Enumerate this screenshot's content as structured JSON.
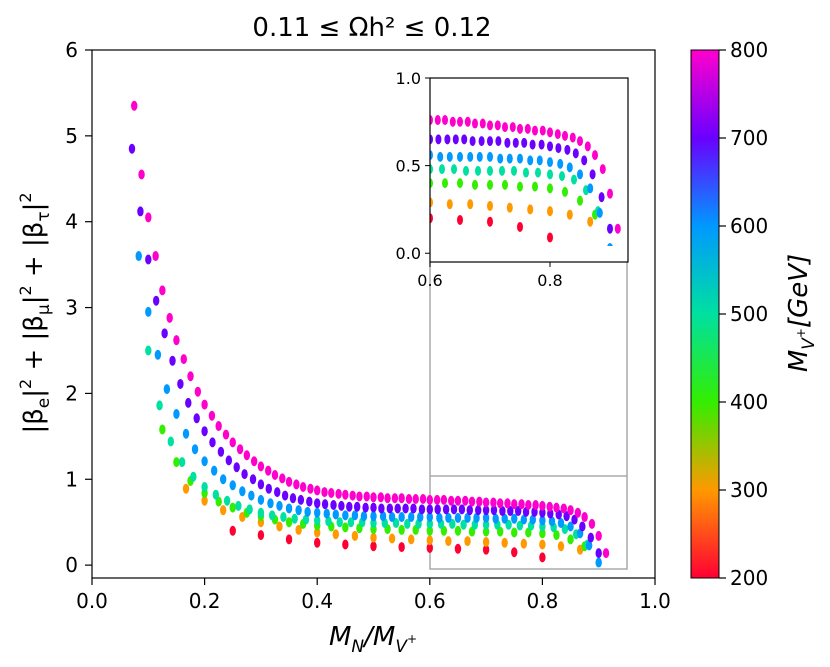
{
  "chart_data": [
    {
      "type": "scatter",
      "title": "0.11 ≤ Ωh² ≤ 0.12",
      "xlabel": "M_N/M_V+",
      "ylabel": "|β_e|² + |β_μ|² + |β_τ|²",
      "xlim": [
        0.0,
        1.0
      ],
      "ylim": [
        -0.15,
        6.0
      ],
      "xticks": [
        "0.0",
        "0.2",
        "0.4",
        "0.6",
        "0.8",
        "1.0"
      ],
      "yticks": [
        "0",
        "1",
        "2",
        "3",
        "4",
        "5",
        "6"
      ],
      "grid": false,
      "color_by": "M_V+",
      "series": [
        {
          "mv": 200,
          "color": "#ff0033",
          "x": [
            0.25,
            0.3,
            0.35,
            0.4,
            0.45,
            0.5,
            0.55,
            0.6,
            0.65,
            0.7,
            0.75,
            0.8
          ],
          "y": [
            0.4,
            0.35,
            0.3,
            0.26,
            0.24,
            0.22,
            0.21,
            0.2,
            0.19,
            0.18,
            0.15,
            0.09
          ]
        },
        {
          "mv": 300,
          "color": "#ff9900",
          "x": [
            0.167,
            0.2,
            0.233,
            0.267,
            0.3,
            0.333,
            0.367,
            0.4,
            0.433,
            0.467,
            0.5,
            0.533,
            0.567,
            0.6,
            0.633,
            0.667,
            0.7,
            0.733,
            0.767,
            0.8,
            0.833,
            0.867
          ],
          "y": [
            0.89,
            0.75,
            0.64,
            0.56,
            0.5,
            0.45,
            0.41,
            0.38,
            0.36,
            0.34,
            0.32,
            0.31,
            0.3,
            0.29,
            0.28,
            0.28,
            0.27,
            0.26,
            0.25,
            0.24,
            0.22,
            0.18
          ]
        },
        {
          "mv": 400,
          "color": "#33ee00",
          "x": [
            0.125,
            0.15,
            0.175,
            0.2,
            0.225,
            0.25,
            0.275,
            0.3,
            0.325,
            0.35,
            0.375,
            0.4,
            0.425,
            0.45,
            0.475,
            0.5,
            0.525,
            0.55,
            0.575,
            0.6,
            0.625,
            0.65,
            0.675,
            0.7,
            0.725,
            0.75,
            0.775,
            0.8,
            0.825,
            0.85,
            0.875
          ],
          "y": [
            1.58,
            1.2,
            0.98,
            0.84,
            0.74,
            0.67,
            0.61,
            0.57,
            0.53,
            0.5,
            0.48,
            0.46,
            0.45,
            0.44,
            0.43,
            0.42,
            0.42,
            0.41,
            0.41,
            0.4,
            0.4,
            0.4,
            0.39,
            0.39,
            0.39,
            0.38,
            0.38,
            0.37,
            0.35,
            0.3,
            0.22
          ]
        },
        {
          "mv": 500,
          "color": "#00e0a0",
          "x": [
            0.1,
            0.12,
            0.14,
            0.16,
            0.18,
            0.2,
            0.22,
            0.24,
            0.26,
            0.28,
            0.3,
            0.32,
            0.34,
            0.36,
            0.38,
            0.4,
            0.42,
            0.44,
            0.46,
            0.48,
            0.5,
            0.52,
            0.54,
            0.56,
            0.58,
            0.6,
            0.62,
            0.64,
            0.66,
            0.68,
            0.7,
            0.72,
            0.74,
            0.76,
            0.78,
            0.8,
            0.82,
            0.84,
            0.86,
            0.88
          ],
          "y": [
            2.5,
            1.86,
            1.44,
            1.2,
            1.03,
            0.91,
            0.82,
            0.75,
            0.69,
            0.65,
            0.61,
            0.58,
            0.56,
            0.54,
            0.53,
            0.52,
            0.51,
            0.5,
            0.5,
            0.5,
            0.49,
            0.49,
            0.49,
            0.48,
            0.48,
            0.48,
            0.48,
            0.48,
            0.47,
            0.47,
            0.47,
            0.47,
            0.47,
            0.46,
            0.46,
            0.45,
            0.44,
            0.42,
            0.36,
            0.24
          ]
        },
        {
          "mv": 600,
          "color": "#0099ff",
          "x": [
            0.083,
            0.1,
            0.117,
            0.133,
            0.15,
            0.167,
            0.183,
            0.2,
            0.217,
            0.233,
            0.25,
            0.267,
            0.283,
            0.3,
            0.317,
            0.333,
            0.35,
            0.367,
            0.383,
            0.4,
            0.417,
            0.433,
            0.45,
            0.467,
            0.483,
            0.5,
            0.517,
            0.533,
            0.55,
            0.567,
            0.583,
            0.6,
            0.617,
            0.633,
            0.65,
            0.667,
            0.683,
            0.7,
            0.717,
            0.733,
            0.75,
            0.767,
            0.783,
            0.8,
            0.817,
            0.833,
            0.85,
            0.867,
            0.883,
            0.9
          ],
          "y": [
            3.6,
            2.95,
            2.45,
            2.05,
            1.76,
            1.53,
            1.35,
            1.21,
            1.1,
            1.0,
            0.93,
            0.86,
            0.81,
            0.76,
            0.72,
            0.69,
            0.66,
            0.64,
            0.62,
            0.61,
            0.6,
            0.59,
            0.58,
            0.58,
            0.57,
            0.57,
            0.57,
            0.56,
            0.56,
            0.56,
            0.56,
            0.56,
            0.55,
            0.55,
            0.55,
            0.55,
            0.55,
            0.55,
            0.54,
            0.54,
            0.54,
            0.53,
            0.53,
            0.52,
            0.51,
            0.49,
            0.45,
            0.37,
            0.23,
            0.03
          ]
        },
        {
          "mv": 700,
          "color": "#6a00ff",
          "x": [
            0.071,
            0.086,
            0.1,
            0.114,
            0.129,
            0.143,
            0.157,
            0.171,
            0.186,
            0.2,
            0.214,
            0.229,
            0.243,
            0.257,
            0.271,
            0.286,
            0.3,
            0.314,
            0.329,
            0.343,
            0.357,
            0.371,
            0.386,
            0.4,
            0.414,
            0.429,
            0.443,
            0.457,
            0.471,
            0.486,
            0.5,
            0.514,
            0.529,
            0.543,
            0.557,
            0.571,
            0.586,
            0.6,
            0.614,
            0.629,
            0.643,
            0.657,
            0.671,
            0.686,
            0.7,
            0.714,
            0.729,
            0.743,
            0.757,
            0.771,
            0.786,
            0.8,
            0.814,
            0.829,
            0.843,
            0.857,
            0.871,
            0.886,
            0.9
          ],
          "y": [
            4.85,
            4.12,
            3.56,
            3.08,
            2.7,
            2.38,
            2.11,
            1.89,
            1.71,
            1.56,
            1.43,
            1.32,
            1.22,
            1.14,
            1.06,
            1.0,
            0.94,
            0.89,
            0.85,
            0.81,
            0.78,
            0.76,
            0.74,
            0.72,
            0.71,
            0.7,
            0.69,
            0.68,
            0.68,
            0.67,
            0.67,
            0.66,
            0.66,
            0.66,
            0.66,
            0.66,
            0.65,
            0.65,
            0.65,
            0.65,
            0.65,
            0.65,
            0.64,
            0.64,
            0.64,
            0.64,
            0.63,
            0.63,
            0.63,
            0.62,
            0.62,
            0.61,
            0.6,
            0.59,
            0.57,
            0.53,
            0.45,
            0.32,
            0.14
          ]
        },
        {
          "mv": 800,
          "color": "#ff00cc",
          "x": [
            0.075,
            0.088,
            0.1,
            0.113,
            0.125,
            0.138,
            0.15,
            0.163,
            0.175,
            0.188,
            0.2,
            0.213,
            0.225,
            0.238,
            0.25,
            0.263,
            0.275,
            0.288,
            0.3,
            0.313,
            0.325,
            0.338,
            0.35,
            0.363,
            0.375,
            0.388,
            0.4,
            0.413,
            0.425,
            0.438,
            0.45,
            0.463,
            0.475,
            0.488,
            0.5,
            0.513,
            0.525,
            0.538,
            0.55,
            0.563,
            0.575,
            0.588,
            0.6,
            0.613,
            0.625,
            0.638,
            0.65,
            0.663,
            0.675,
            0.688,
            0.7,
            0.713,
            0.725,
            0.738,
            0.75,
            0.763,
            0.775,
            0.788,
            0.8,
            0.813,
            0.825,
            0.838,
            0.85,
            0.863,
            0.875,
            0.888,
            0.9,
            0.913
          ],
          "y": [
            5.35,
            4.55,
            4.05,
            3.6,
            3.2,
            2.88,
            2.62,
            2.4,
            2.2,
            2.02,
            1.87,
            1.74,
            1.62,
            1.52,
            1.43,
            1.35,
            1.28,
            1.21,
            1.15,
            1.1,
            1.05,
            1.01,
            0.97,
            0.94,
            0.91,
            0.89,
            0.87,
            0.85,
            0.84,
            0.83,
            0.82,
            0.81,
            0.8,
            0.8,
            0.79,
            0.79,
            0.78,
            0.78,
            0.78,
            0.77,
            0.77,
            0.77,
            0.76,
            0.76,
            0.76,
            0.75,
            0.75,
            0.75,
            0.74,
            0.74,
            0.73,
            0.73,
            0.72,
            0.72,
            0.71,
            0.71,
            0.7,
            0.7,
            0.69,
            0.68,
            0.67,
            0.66,
            0.64,
            0.61,
            0.56,
            0.48,
            0.34,
            0.14
          ]
        }
      ],
      "zoom_region": {
        "xlim": [
          0.6,
          0.95
        ],
        "ylim": [
          -0.1,
          1.0
        ]
      }
    },
    {
      "type": "scatter",
      "title": "",
      "role": "inset",
      "xlim": [
        0.6,
        0.93
      ],
      "ylim": [
        -0.05,
        1.0
      ],
      "xticks": [
        "0.6",
        "0.8"
      ],
      "yticks": [
        "0.0",
        "0.5",
        "1.0"
      ],
      "grid": false,
      "note_same_series_as": "main"
    }
  ],
  "colorbar": {
    "label": "M_V+[GeV]",
    "min": 200,
    "max": 800,
    "ticks": [
      "200",
      "300",
      "400",
      "500",
      "600",
      "700",
      "800"
    ],
    "colors": [
      "#ff0033",
      "#ff9900",
      "#33ee00",
      "#00e0a0",
      "#0099ff",
      "#6a00ff",
      "#ff00cc"
    ]
  }
}
